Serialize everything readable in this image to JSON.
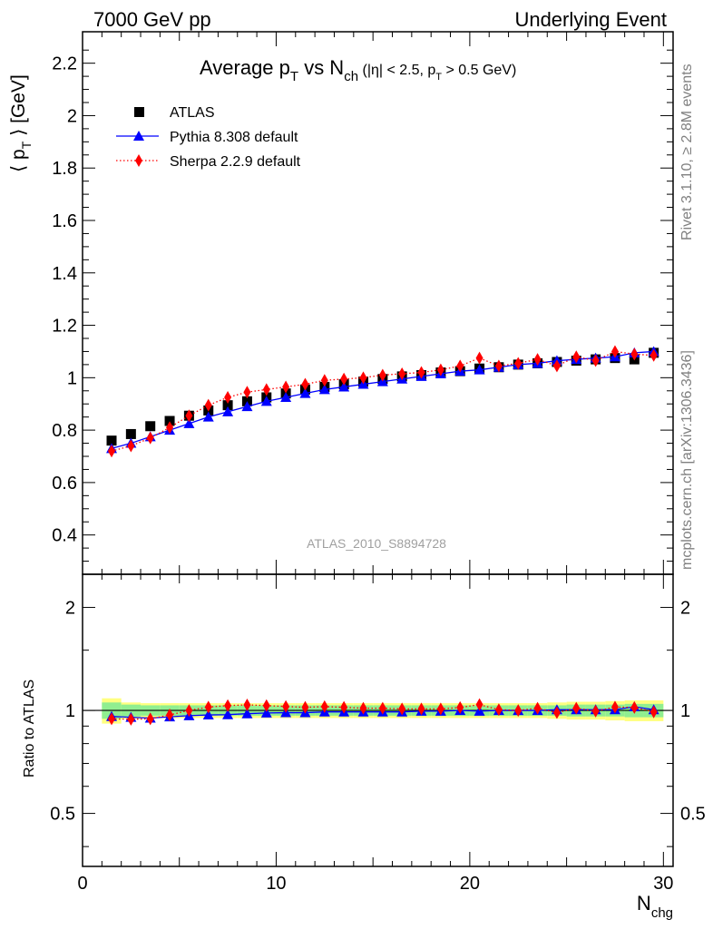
{
  "header": {
    "left": "7000 GeV pp",
    "right": "Underlying Event"
  },
  "side_text": {
    "top": "Rivet 3.1.10, ≥ 2.8M events",
    "bottom": "mcplots.cern.ch [arXiv:1306.3436]"
  },
  "watermark": "ATLAS_2010_S8894728",
  "colors": {
    "atlas": "#000000",
    "pythia": "#0000ff",
    "sherpa": "#ff0000",
    "band_inner": "#90ee90",
    "band_outer": "#ffff80",
    "side_text": "#808080"
  },
  "chart_data": [
    {
      "type": "scatter",
      "title": "Average p_T vs N_ch (|η| < 2.5, p_T > 0.5 GeV)",
      "title_parts": {
        "main": "Average p",
        "sub1": "T",
        "mid": " vs N",
        "sub2": "ch",
        "cond_a": " (|η| < 2.5, p",
        "cond_sub": "T",
        "cond_b": " > 0.5 GeV)"
      },
      "ylabel_parts": {
        "a": "⟨ p",
        "sub": "T",
        "b": " ⟩ [GeV]"
      },
      "xlim": [
        0,
        30.5
      ],
      "ylim": [
        0.25,
        2.32
      ],
      "y_ticks": [
        0.4,
        0.6,
        0.8,
        1,
        1.2,
        1.4,
        1.6,
        1.8,
        2,
        2.2
      ],
      "y_tick_labels": [
        "0.4",
        "0.6",
        "0.8",
        "1",
        "1.2",
        "1.4",
        "1.6",
        "1.8",
        "2",
        "2.2"
      ],
      "legend_position": "top-left",
      "x": [
        1.5,
        2.5,
        3.5,
        4.5,
        5.5,
        6.5,
        7.5,
        8.5,
        9.5,
        10.5,
        11.5,
        12.5,
        13.5,
        14.5,
        15.5,
        16.5,
        17.5,
        18.5,
        19.5,
        20.5,
        21.5,
        22.5,
        23.5,
        24.5,
        25.5,
        26.5,
        27.5,
        28.5,
        29.5
      ],
      "series": [
        {
          "name": "ATLAS",
          "marker": "square",
          "values": [
            0.76,
            0.785,
            0.815,
            0.835,
            0.855,
            0.875,
            0.895,
            0.91,
            0.925,
            0.94,
            0.955,
            0.965,
            0.975,
            0.985,
            0.995,
            1.005,
            1.01,
            1.02,
            1.025,
            1.035,
            1.04,
            1.05,
            1.055,
            1.06,
            1.065,
            1.07,
            1.075,
            1.07,
            1.095
          ]
        },
        {
          "name": "Pythia 8.308 default",
          "marker": "triangle",
          "line": "solid",
          "values": [
            0.73,
            0.75,
            0.775,
            0.8,
            0.825,
            0.85,
            0.87,
            0.89,
            0.91,
            0.925,
            0.94,
            0.955,
            0.965,
            0.975,
            0.985,
            0.995,
            1.005,
            1.015,
            1.025,
            1.03,
            1.04,
            1.05,
            1.055,
            1.065,
            1.07,
            1.075,
            1.08,
            1.095,
            1.1
          ]
        },
        {
          "name": "Sherpa 2.2.9 default",
          "marker": "diamond",
          "line": "dotted",
          "values": [
            0.72,
            0.74,
            0.77,
            0.81,
            0.855,
            0.895,
            0.925,
            0.945,
            0.955,
            0.965,
            0.975,
            0.99,
            0.995,
            1.0,
            1.01,
            1.015,
            1.02,
            1.03,
            1.045,
            1.075,
            1.045,
            1.055,
            1.07,
            1.045,
            1.08,
            1.065,
            1.1,
            1.09,
            1.085
          ]
        }
      ]
    },
    {
      "type": "scatter",
      "title": "",
      "ylabel": "Ratio to ATLAS",
      "xlabel": "N_chg",
      "xlabel_parts": {
        "main": "N",
        "sub": "chg"
      },
      "xlim": [
        0,
        30.5
      ],
      "ylim": [
        0.35,
        2.5
      ],
      "log_y": true,
      "x_ticks": [
        0,
        10,
        20,
        30
      ],
      "x_tick_labels": [
        "0",
        "10",
        "20",
        "30"
      ],
      "y_ticks": [
        0.5,
        1,
        2
      ],
      "y_tick_labels": [
        "0.5",
        "1",
        "2"
      ],
      "x": [
        1.5,
        2.5,
        3.5,
        4.5,
        5.5,
        6.5,
        7.5,
        8.5,
        9.5,
        10.5,
        11.5,
        12.5,
        13.5,
        14.5,
        15.5,
        16.5,
        17.5,
        18.5,
        19.5,
        20.5,
        21.5,
        22.5,
        23.5,
        24.5,
        25.5,
        26.5,
        27.5,
        28.5,
        29.5
      ],
      "band": {
        "inner_half_width": [
          0.055,
          0.04,
          0.035,
          0.035,
          0.035,
          0.035,
          0.035,
          0.035,
          0.035,
          0.035,
          0.035,
          0.035,
          0.035,
          0.035,
          0.035,
          0.035,
          0.035,
          0.035,
          0.035,
          0.035,
          0.035,
          0.035,
          0.035,
          0.035,
          0.04,
          0.04,
          0.04,
          0.045,
          0.045
        ],
        "outer_half_width": [
          0.085,
          0.055,
          0.05,
          0.05,
          0.05,
          0.05,
          0.05,
          0.05,
          0.05,
          0.05,
          0.05,
          0.05,
          0.05,
          0.05,
          0.05,
          0.05,
          0.05,
          0.05,
          0.05,
          0.05,
          0.05,
          0.05,
          0.05,
          0.055,
          0.06,
          0.06,
          0.065,
          0.07,
          0.07
        ]
      },
      "series": [
        {
          "name": "Pythia 8.308 default",
          "marker": "triangle",
          "line": "solid",
          "values": [
            0.96,
            0.955,
            0.95,
            0.958,
            0.965,
            0.97,
            0.972,
            0.978,
            0.983,
            0.985,
            0.985,
            0.99,
            0.99,
            0.99,
            0.99,
            0.99,
            0.995,
            0.995,
            1.0,
            0.995,
            1.0,
            1.0,
            1.0,
            1.005,
            1.005,
            1.005,
            1.005,
            1.025,
            1.005
          ]
        },
        {
          "name": "Sherpa 2.2.9 default",
          "marker": "diamond",
          "line": "dotted",
          "values": [
            0.945,
            0.942,
            0.945,
            0.97,
            1.0,
            1.023,
            1.033,
            1.038,
            1.033,
            1.027,
            1.021,
            1.026,
            1.021,
            1.015,
            1.015,
            1.01,
            1.01,
            1.01,
            1.02,
            1.04,
            1.005,
            1.0,
            1.015,
            0.985,
            1.015,
            0.995,
            1.023,
            1.02,
            0.99
          ]
        }
      ]
    }
  ]
}
